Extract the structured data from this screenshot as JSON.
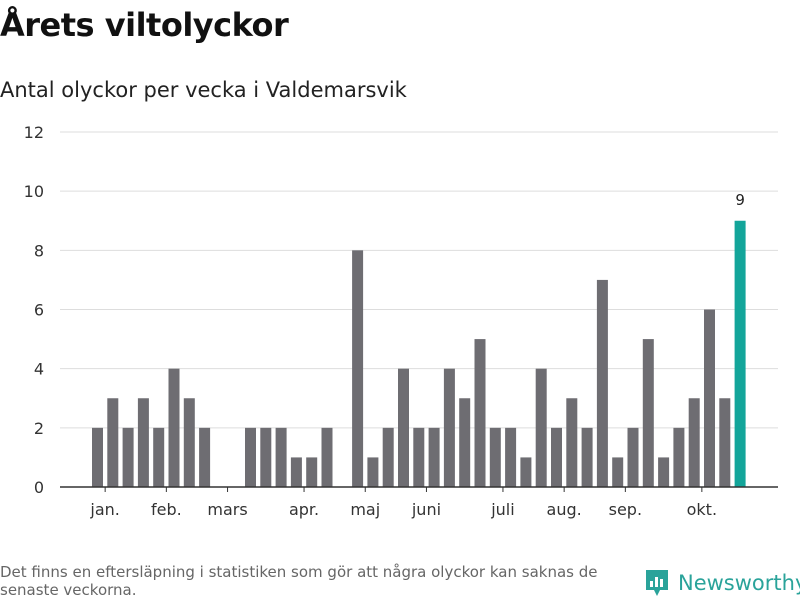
{
  "title": "Årets viltolyckor",
  "subtitle": "Antal olyckor per vecka i Valdemarsvik",
  "footnote": "Det finns en eftersläpning i statistiken som gör att några olyckor kan saknas de senaste veckorna.",
  "brand": {
    "name": "Newsworthy"
  },
  "colors": {
    "bar": "#6e6d72",
    "highlight": "#13a59a",
    "grid": "#dddddd",
    "axis": "#333333",
    "brand": "#2aa39a"
  },
  "chart_data": {
    "type": "bar",
    "xlabel": "",
    "ylabel": "",
    "ylim": [
      0,
      12
    ],
    "yticks": [
      0,
      2,
      4,
      6,
      8,
      10,
      12
    ],
    "grid": true,
    "values": [
      2,
      3,
      2,
      3,
      2,
      4,
      3,
      2,
      0,
      0,
      2,
      2,
      2,
      1,
      1,
      2,
      0,
      8,
      1,
      2,
      4,
      2,
      2,
      4,
      3,
      5,
      2,
      2,
      1,
      4,
      2,
      3,
      2,
      7,
      1,
      2,
      5,
      1,
      2,
      3,
      6,
      3,
      9
    ],
    "highlight_index": 42,
    "data_labels": [
      {
        "index": 42,
        "text": "9"
      }
    ],
    "month_labels": [
      {
        "label": "jan.",
        "bar_index": 0.5
      },
      {
        "label": "feb.",
        "bar_index": 4.5
      },
      {
        "label": "mars",
        "bar_index": 8.5
      },
      {
        "label": "apr.",
        "bar_index": 13.5
      },
      {
        "label": "maj",
        "bar_index": 17.5
      },
      {
        "label": "juni",
        "bar_index": 21.5
      },
      {
        "label": "juli",
        "bar_index": 26.5
      },
      {
        "label": "aug.",
        "bar_index": 30.5
      },
      {
        "label": "sep.",
        "bar_index": 34.5
      },
      {
        "label": "okt.",
        "bar_index": 39.5
      }
    ]
  }
}
